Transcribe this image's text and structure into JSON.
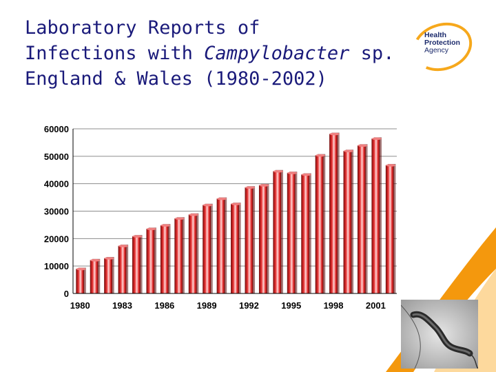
{
  "slide": {
    "title_line1": "Laboratory Reports of",
    "title_line2_prefix": "Infections with ",
    "title_line2_italic": "Campylobacter",
    "title_line2_suffix": " sp.",
    "title_line3": "England & Wales (1980-2002)"
  },
  "logo": {
    "line1": "Health",
    "line2": "Protection",
    "line3": "Agency"
  },
  "colors": {
    "title": "#1a1a7a",
    "bar": "#d81e1e",
    "accent_orange": "#f39200",
    "logo_ring": "#f6a81c"
  },
  "chart_data": {
    "type": "bar",
    "title": "",
    "xlabel": "",
    "ylabel": "",
    "ylim": [
      0,
      60000
    ],
    "yticks": [
      "60000",
      "50000",
      "40000",
      "30000",
      "20000",
      "10000",
      "0"
    ],
    "xtick_labels": [
      "1980",
      "1983",
      "1986",
      "1989",
      "1992",
      "1995",
      "1998",
      "2001"
    ],
    "grid": "horizontal",
    "categories": [
      "1980",
      "1981",
      "1982",
      "1983",
      "1984",
      "1985",
      "1986",
      "1987",
      "1988",
      "1989",
      "1990",
      "1991",
      "1992",
      "1993",
      "1994",
      "1995",
      "1996",
      "1997",
      "1998",
      "1999",
      "2000",
      "2001",
      "2002"
    ],
    "values": [
      8900,
      12100,
      12800,
      17300,
      20800,
      23500,
      24800,
      27300,
      28700,
      32200,
      34500,
      32600,
      38600,
      39400,
      44500,
      43900,
      43300,
      50300,
      58100,
      51900,
      53900,
      56400,
      46700
    ]
  },
  "icons": {
    "photo": "campylobacter-micrograph",
    "decoration": "orange-swoosh"
  }
}
